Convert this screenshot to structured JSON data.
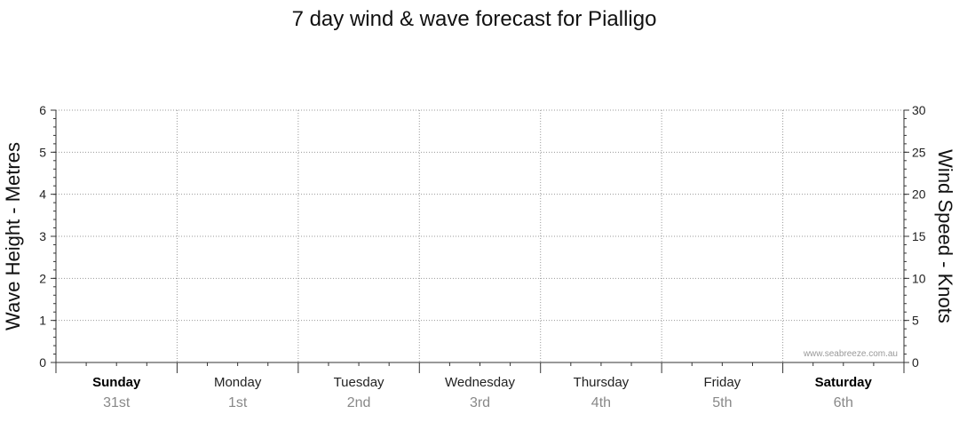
{
  "chart_data": {
    "type": "line",
    "title": "7 day wind & wave forecast for Pialligo",
    "ylabel_left": "Wave Height - Metres",
    "ylabel_right": "Wind Speed - Knots",
    "ylim_left": [
      0,
      6
    ],
    "ylim_right": [
      0,
      30
    ],
    "yticks_left": [
      "0",
      "1",
      "2",
      "3",
      "4",
      "5",
      "6"
    ],
    "yticks_right": [
      "0",
      "5",
      "10",
      "15",
      "20",
      "25",
      "30"
    ],
    "grid": true,
    "days": [
      {
        "name": "Sunday",
        "date": "31st",
        "bold": true
      },
      {
        "name": "Monday",
        "date": "1st",
        "bold": false
      },
      {
        "name": "Tuesday",
        "date": "2nd",
        "bold": false
      },
      {
        "name": "Wednesday",
        "date": "3rd",
        "bold": false
      },
      {
        "name": "Thursday",
        "date": "4th",
        "bold": false
      },
      {
        "name": "Friday",
        "date": "5th",
        "bold": false
      },
      {
        "name": "Saturday",
        "date": "6th",
        "bold": true
      }
    ],
    "series": []
  },
  "watermark": "www.seabreeze.com.au",
  "colors": {
    "grid": "#999999",
    "axis": "#333333"
  }
}
